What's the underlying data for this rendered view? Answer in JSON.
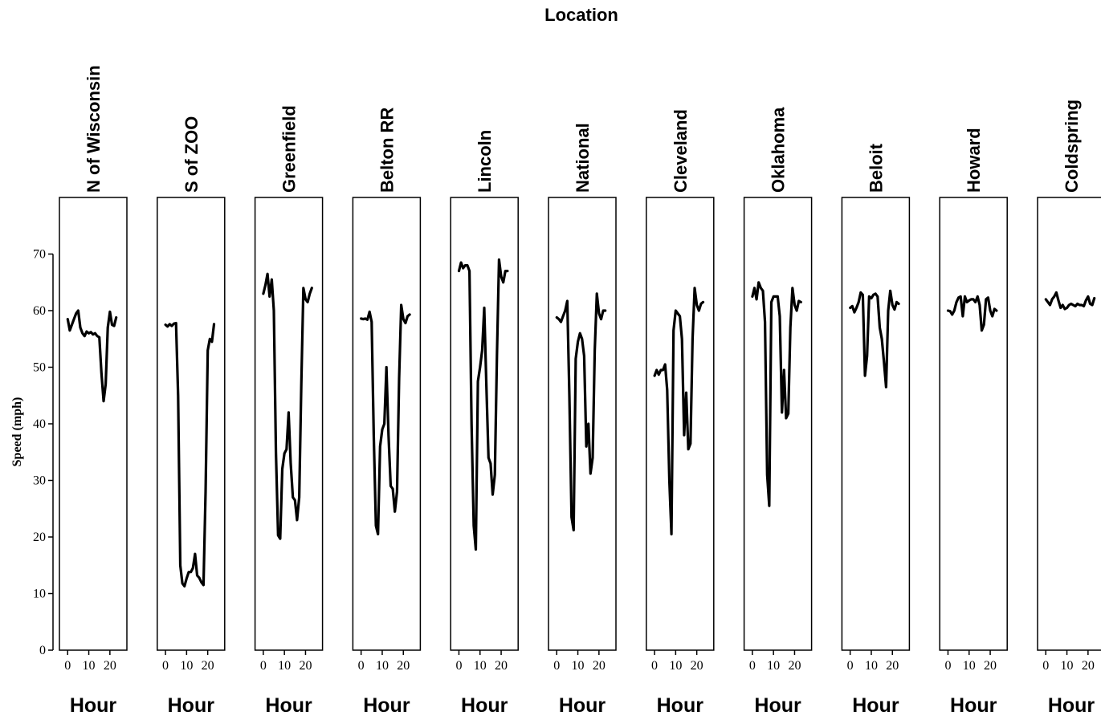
{
  "chart_data": {
    "type": "line",
    "title": "Location",
    "ylabel": "Speed (mph)",
    "xlabel": "Hour",
    "ylim": [
      0,
      80
    ],
    "xlim": [
      -2,
      25
    ],
    "yticks": [
      0,
      10,
      20,
      30,
      40,
      50,
      60,
      70
    ],
    "xticks": [
      0,
      10,
      20
    ],
    "x": [
      0,
      1,
      2,
      3,
      4,
      5,
      6,
      7,
      8,
      9,
      10,
      11,
      12,
      13,
      14,
      15,
      16,
      17,
      18,
      19,
      20,
      21,
      22,
      23
    ],
    "series": [
      {
        "name": "N of Wisconsin",
        "values": [
          58.5,
          56.5,
          57.5,
          58.5,
          59.5,
          60.0,
          57.0,
          56.0,
          55.5,
          56.3,
          56.0,
          56.2,
          55.8,
          56.0,
          55.5,
          55.3,
          49.0,
          44.0,
          47.0,
          57.0,
          59.8,
          57.5,
          57.3,
          58.8
        ]
      },
      {
        "name": "S of ZOO",
        "values": [
          57.5,
          57.2,
          57.6,
          57.3,
          57.7,
          57.8,
          45.0,
          15.0,
          11.8,
          11.3,
          12.7,
          13.8,
          13.8,
          14.5,
          17.0,
          13.2,
          12.8,
          12.0,
          11.5,
          28.0,
          53.0,
          55.0,
          54.5,
          57.6
        ]
      },
      {
        "name": "Greenfield",
        "values": [
          63.0,
          64.5,
          66.5,
          62.5,
          65.5,
          60.0,
          35.0,
          20.3,
          19.7,
          32.0,
          34.8,
          35.5,
          42.0,
          33.0,
          27.0,
          26.5,
          23.0,
          27.0,
          47.0,
          64.0,
          62.0,
          61.5,
          63.0,
          64.0
        ]
      },
      {
        "name": "Belton RR",
        "values": [
          58.6,
          58.5,
          58.6,
          58.4,
          59.8,
          58.0,
          38.0,
          22.0,
          20.5,
          36.0,
          39.0,
          40.0,
          50.0,
          38.0,
          29.0,
          28.5,
          24.5,
          28.0,
          48.0,
          61.0,
          58.5,
          57.8,
          59.0,
          59.3
        ]
      },
      {
        "name": "Lincoln",
        "values": [
          67.0,
          68.5,
          67.5,
          68.0,
          68.0,
          67.0,
          40.0,
          22.0,
          17.8,
          47.5,
          50.0,
          53.0,
          60.5,
          47.0,
          34.0,
          33.0,
          27.5,
          31.0,
          52.0,
          69.0,
          66.0,
          65.0,
          67.0,
          67.0
        ]
      },
      {
        "name": "National",
        "values": [
          58.8,
          58.5,
          58.0,
          59.0,
          60.0,
          61.7,
          45.0,
          23.5,
          21.2,
          51.5,
          54.5,
          56.0,
          55.0,
          52.0,
          36.0,
          40.0,
          31.2,
          34.0,
          53.0,
          63.0,
          59.5,
          58.5,
          60.0,
          60.0
        ]
      },
      {
        "name": "Cleveland",
        "values": [
          48.5,
          49.5,
          48.7,
          49.5,
          49.5,
          50.5,
          46.0,
          30.0,
          20.5,
          56.5,
          60.0,
          59.5,
          59.0,
          55.0,
          38.0,
          45.5,
          35.5,
          36.5,
          55.0,
          64.0,
          61.0,
          60.0,
          61.2,
          61.5
        ]
      },
      {
        "name": "Oklahoma",
        "values": [
          62.5,
          64.0,
          62.0,
          65.0,
          64.0,
          63.5,
          58.0,
          31.0,
          25.5,
          61.5,
          62.5,
          62.5,
          62.5,
          59.0,
          42.0,
          49.5,
          41.0,
          41.8,
          57.0,
          64.0,
          61.0,
          60.0,
          61.7,
          61.5
        ]
      },
      {
        "name": "Beloit",
        "values": [
          60.5,
          60.8,
          59.7,
          60.5,
          61.5,
          63.2,
          62.8,
          48.5,
          52.0,
          62.5,
          62.2,
          62.8,
          63.0,
          62.5,
          57.0,
          55.0,
          51.0,
          46.5,
          60.0,
          63.5,
          61.0,
          60.2,
          61.5,
          61.2
        ]
      },
      {
        "name": "Howard",
        "values": [
          60.0,
          59.9,
          59.3,
          60.0,
          61.5,
          62.3,
          62.5,
          59.0,
          62.5,
          61.5,
          61.8,
          62.0,
          62.0,
          61.5,
          62.5,
          61.0,
          56.5,
          57.5,
          62.0,
          62.3,
          60.0,
          59.0,
          60.3,
          60.0
        ]
      },
      {
        "name": "Coldspring",
        "values": [
          62.0,
          61.5,
          61.0,
          62.0,
          62.5,
          63.2,
          61.8,
          60.5,
          61.0,
          60.3,
          60.5,
          61.0,
          61.2,
          61.0,
          60.8,
          61.2,
          61.0,
          61.0,
          60.8,
          61.8,
          62.5,
          61.2,
          61.0,
          62.2
        ]
      }
    ]
  }
}
